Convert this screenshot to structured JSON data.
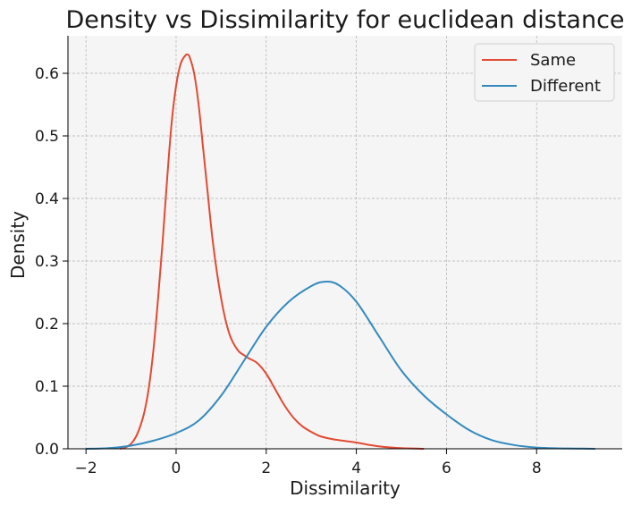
{
  "chart_data": {
    "type": "line",
    "title": "Density vs Dissimilarity for euclidean distance",
    "xlabel": "Dissimilarity",
    "ylabel": "Density",
    "xlim": [
      -2.4,
      9.9
    ],
    "ylim": [
      0,
      0.66
    ],
    "xticks": [
      -2,
      0,
      2,
      4,
      6,
      8
    ],
    "yticks": [
      0.0,
      0.1,
      0.2,
      0.3,
      0.4,
      0.5,
      0.6
    ],
    "xtick_labels": [
      "−2",
      "0",
      "2",
      "4",
      "6",
      "8"
    ],
    "ytick_labels": [
      "0.0",
      "0.1",
      "0.2",
      "0.3",
      "0.4",
      "0.5",
      "0.6"
    ],
    "grid": true,
    "legend_position": "top-right",
    "background": "#f5f5f5",
    "series": [
      {
        "name": "Same",
        "color": "#e24a33",
        "x": [
          -1.25,
          -1.1,
          -1.0,
          -0.9,
          -0.8,
          -0.7,
          -0.6,
          -0.5,
          -0.4,
          -0.3,
          -0.2,
          -0.1,
          0.0,
          0.1,
          0.2,
          0.25,
          0.3,
          0.4,
          0.5,
          0.6,
          0.7,
          0.8,
          0.9,
          1.0,
          1.1,
          1.2,
          1.3,
          1.4,
          1.5,
          1.6,
          1.8,
          2.0,
          2.2,
          2.4,
          2.6,
          2.8,
          3.0,
          3.2,
          3.5,
          4.0,
          4.3,
          4.6,
          5.0,
          5.5
        ],
        "y": [
          0.0,
          0.003,
          0.008,
          0.018,
          0.035,
          0.06,
          0.1,
          0.16,
          0.24,
          0.33,
          0.43,
          0.52,
          0.58,
          0.615,
          0.628,
          0.63,
          0.626,
          0.6,
          0.55,
          0.48,
          0.41,
          0.34,
          0.285,
          0.24,
          0.205,
          0.18,
          0.165,
          0.155,
          0.15,
          0.145,
          0.137,
          0.12,
          0.095,
          0.07,
          0.05,
          0.036,
          0.027,
          0.02,
          0.015,
          0.01,
          0.006,
          0.003,
          0.001,
          0.0
        ]
      },
      {
        "name": "Different",
        "color": "#348abd",
        "x": [
          -2.0,
          -1.5,
          -1.0,
          -0.5,
          0.0,
          0.5,
          1.0,
          1.5,
          2.0,
          2.5,
          3.0,
          3.3,
          3.6,
          4.0,
          4.5,
          5.0,
          5.5,
          6.0,
          6.5,
          7.0,
          7.5,
          8.0,
          8.5,
          9.0,
          9.3
        ],
        "y": [
          0.0,
          0.001,
          0.005,
          0.013,
          0.025,
          0.045,
          0.085,
          0.14,
          0.195,
          0.235,
          0.26,
          0.267,
          0.262,
          0.235,
          0.18,
          0.125,
          0.085,
          0.055,
          0.03,
          0.014,
          0.006,
          0.002,
          0.0008,
          0.0003,
          0.0
        ]
      }
    ]
  }
}
